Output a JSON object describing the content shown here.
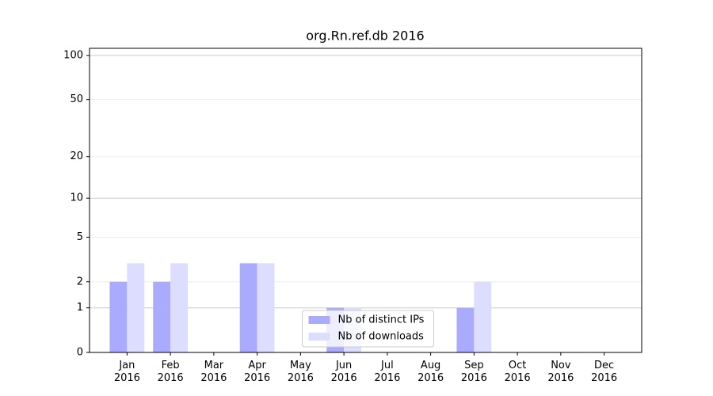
{
  "chart_data": {
    "type": "bar",
    "title": "org.Rn.ref.db 2016",
    "categories": [
      "Jan 2016",
      "Feb 2016",
      "Mar 2016",
      "Apr 2016",
      "May 2016",
      "Jun 2016",
      "Jul 2016",
      "Aug 2016",
      "Sep 2016",
      "Oct 2016",
      "Nov 2016",
      "Dec 2016"
    ],
    "series": [
      {
        "name": "Nb of distinct IPs",
        "color": "#aaaaff",
        "values": [
          2,
          2,
          0,
          3,
          0,
          1,
          0,
          0,
          1,
          0,
          0,
          0
        ]
      },
      {
        "name": "Nb of downloads",
        "color": "#ddddff",
        "values": [
          3,
          3,
          0,
          3,
          0,
          1,
          0,
          0,
          2,
          0,
          0,
          0
        ]
      }
    ],
    "yscale": "log1p",
    "ylim": [
      0,
      112
    ],
    "yticks": [
      0,
      1,
      2,
      5,
      10,
      20,
      50,
      100
    ],
    "grid": true,
    "legend": "lower center"
  }
}
